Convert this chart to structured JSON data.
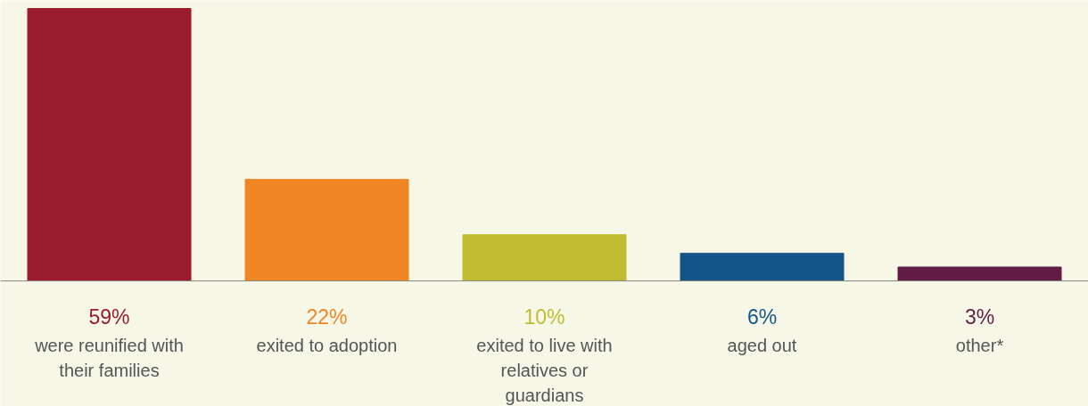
{
  "chart_data": {
    "type": "bar",
    "categories": [
      "were reunified with their families",
      "exited to adoption",
      "exited to live with relatives or guardians",
      "aged out",
      "other*"
    ],
    "values": [
      59,
      22,
      10,
      6,
      3
    ],
    "colors": [
      "#9b1c2c",
      "#ef8623",
      "#c0bb30",
      "#135587",
      "#621d44"
    ],
    "value_labels": [
      "59%",
      "22%",
      "10%",
      "6%",
      "3%"
    ],
    "grid": false
  }
}
